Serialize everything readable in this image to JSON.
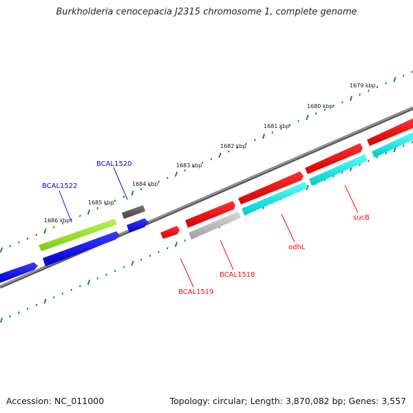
{
  "title": "Burkholderia cenocepacia J2315 chromosome 1, complete genome",
  "footer": {
    "accession": "Accession: NC_011000",
    "summary": "Topology: circular; Length: 3,870,082 bp; Genes: 3,557"
  },
  "ticks": [
    "1679 kbp",
    "1680 kbp",
    "1681 kbp",
    "1682 kbp",
    "1683 kbp",
    "1684 kbp",
    "1685 kbp",
    "1686 kbp"
  ],
  "genes": [
    {
      "label": "BCAL1522",
      "color": "#0000ff"
    },
    {
      "label": "BCAL1520",
      "color": "#0000ff"
    },
    {
      "label": "BCAL1519",
      "color": "#ff0000"
    },
    {
      "label": "BCAL1518",
      "color": "#ff0000"
    },
    {
      "label": "odhL",
      "color": "#ff0000"
    },
    {
      "label": "sucB",
      "color": "#ff0000"
    }
  ],
  "colors": {
    "backbone": "#808080",
    "tick": "#1a8a1a",
    "forward_cds": "#ff0000",
    "reverse_cds": "#0000ff",
    "green_feature": "#99ee22",
    "cyan_feature": "#00ffff",
    "gray_feature": "#b8b8b8",
    "dark_feature": "#606060"
  }
}
